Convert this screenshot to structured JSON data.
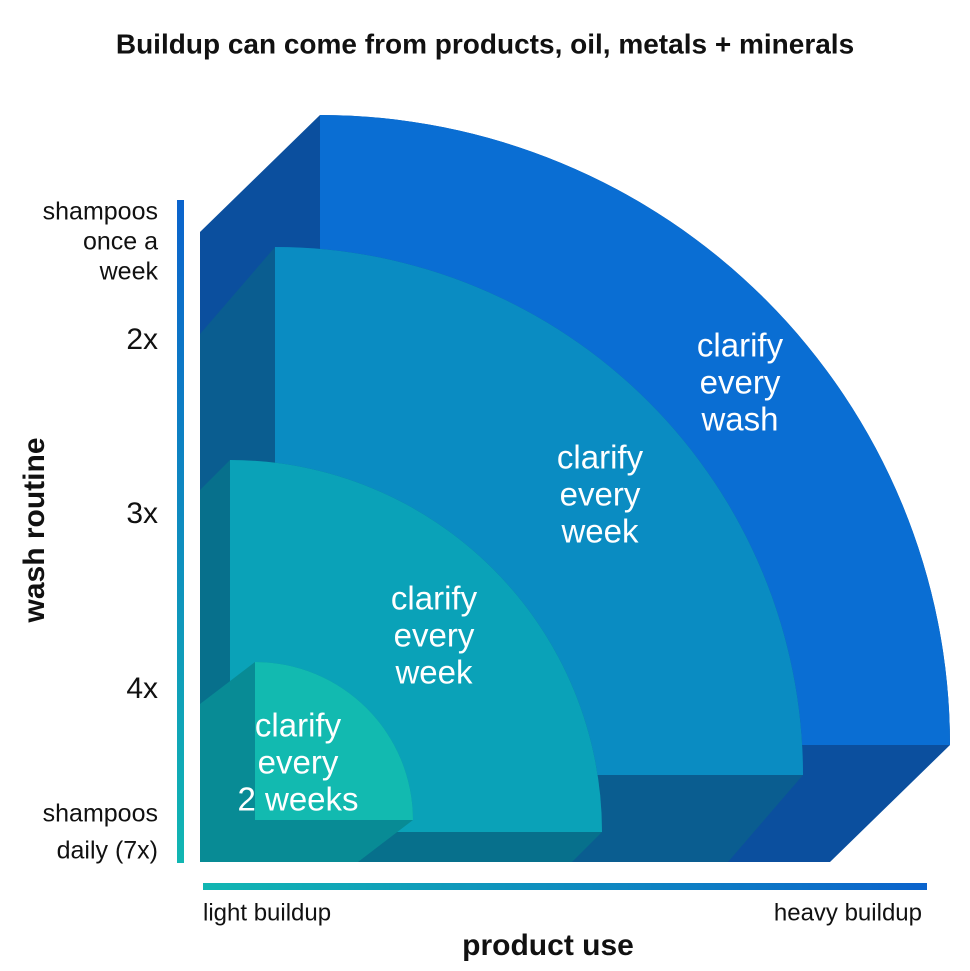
{
  "title": "Buildup can come from products, oil, metals + minerals",
  "y_axis": {
    "title": "wash routine",
    "labels": [
      [
        "shampoos",
        "once a",
        "week"
      ],
      [
        "2x"
      ],
      [
        "3x"
      ],
      [
        "4x"
      ],
      [
        "shampoos",
        "daily (7x)"
      ]
    ]
  },
  "x_axis": {
    "title": "product use",
    "start": "light buildup",
    "end": "heavy buildup"
  },
  "layers": [
    {
      "lines": [
        "clarify",
        "every",
        "wash"
      ]
    },
    {
      "lines": [
        "clarify",
        "every",
        "week"
      ]
    },
    {
      "lines": [
        "clarify",
        "every",
        "week"
      ]
    },
    {
      "lines": [
        "clarify",
        "every",
        "2 weeks"
      ]
    }
  ]
}
